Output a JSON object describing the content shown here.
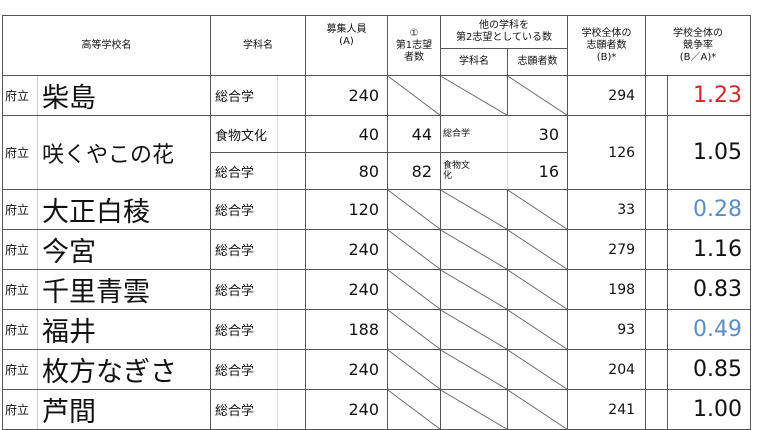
{
  "header": {
    "school": "高等学校名",
    "dept": "学科名",
    "capacity": "募集人員\n(A)",
    "first_choice": "①\n第1志望\n者数",
    "second_choice": "他の学科を\n第2志望としている数",
    "second_dept": "学科名",
    "second_count": "志願者数",
    "total_applicants": "学校全体の\n志願者数\n(B)*",
    "ratio": "学校全体の\n競争率\n(B／A)*"
  },
  "colors": {
    "high": "#d0282c",
    "low": "#5b8dc6"
  },
  "rows": [
    {
      "prefix": "府立",
      "name": "柴島",
      "dept": "総合学",
      "capacity": "240",
      "total": "294",
      "ratio": "1.23",
      "ratio_color": "red"
    },
    {
      "prefix": "府立",
      "name": "咲くやこの花",
      "total": "126",
      "ratio": "1.05",
      "depts": [
        {
          "dept": "食物文化",
          "capacity": "40",
          "first": "44",
          "second_dept": "総合学",
          "second_count": "30"
        },
        {
          "dept": "総合学",
          "capacity": "80",
          "first": "82",
          "second_dept": "食物文\n化",
          "second_count": "16"
        }
      ]
    },
    {
      "prefix": "府立",
      "name": "大正白稜",
      "dept": "総合学",
      "capacity": "120",
      "total": "33",
      "ratio": "0.28",
      "ratio_color": "blue"
    },
    {
      "prefix": "府立",
      "name": "今宮",
      "dept": "総合学",
      "capacity": "240",
      "total": "279",
      "ratio": "1.16"
    },
    {
      "prefix": "府立",
      "name": "千里青雲",
      "dept": "総合学",
      "capacity": "240",
      "total": "198",
      "ratio": "0.83"
    },
    {
      "prefix": "府立",
      "name": "福井",
      "dept": "総合学",
      "capacity": "188",
      "total": "93",
      "ratio": "0.49",
      "ratio_color": "blue"
    },
    {
      "prefix": "府立",
      "name": "枚方なぎさ",
      "dept": "総合学",
      "capacity": "240",
      "total": "204",
      "ratio": "0.85"
    },
    {
      "prefix": "府立",
      "name": "芦間",
      "dept": "総合学",
      "capacity": "240",
      "total": "241",
      "ratio": "1.00"
    }
  ]
}
